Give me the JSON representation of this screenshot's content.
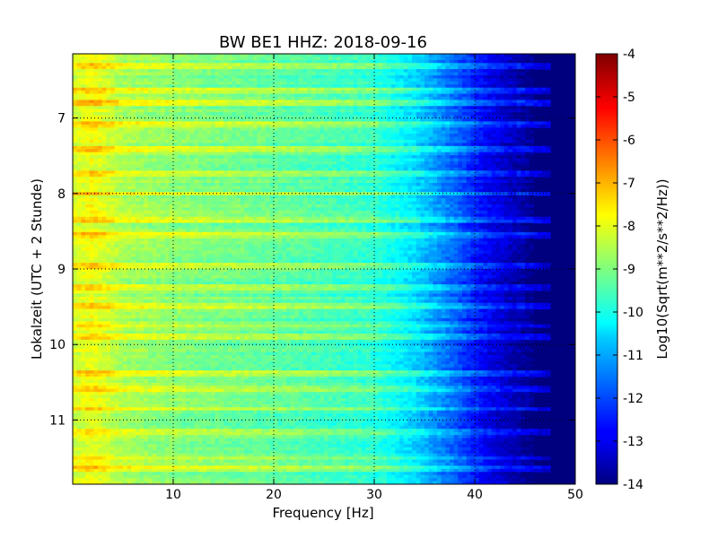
{
  "chart_data": {
    "type": "heatmap",
    "title": "BW BE1 HHZ: 2018-09-16",
    "xlabel": "Frequency [Hz]",
    "ylabel": "Lokalzeit (UTC + 2 Stunde)",
    "xlim": [
      0,
      50
    ],
    "ylim": [
      6.15,
      11.85
    ],
    "y_inverted": true,
    "x_ticks": [
      "10",
      "20",
      "30",
      "40",
      "50"
    ],
    "y_ticks": [
      "7",
      "8",
      "9",
      "10",
      "11"
    ],
    "grid": true,
    "colormap": "jet",
    "colorbar": {
      "label": "Log10(Sqrt(m**2/s**2/Hz))",
      "range": [
        -14,
        -4
      ],
      "ticks": [
        "-4",
        "-5",
        "-6",
        "-7",
        "-8",
        "-9",
        "-10",
        "-11",
        "-12",
        "-13",
        "-14"
      ]
    },
    "spectral_profile": {
      "frequency_hz": [
        0,
        2,
        5,
        10,
        20,
        30,
        34,
        38,
        41,
        44,
        46,
        50
      ],
      "typical_log10_amplitude": [
        -8.2,
        -7.9,
        -8.6,
        -8.9,
        -9.3,
        -9.8,
        -10.6,
        -11.8,
        -12.8,
        -13.5,
        -14,
        -14
      ]
    },
    "high_amplitude_times_h": [
      6.3,
      6.65,
      6.8,
      7.1,
      7.4,
      7.75,
      8.0,
      8.35,
      8.55,
      8.95,
      9.25,
      9.5,
      9.75,
      9.9,
      10.4,
      10.6,
      10.85,
      11.15,
      11.5,
      11.65
    ]
  }
}
